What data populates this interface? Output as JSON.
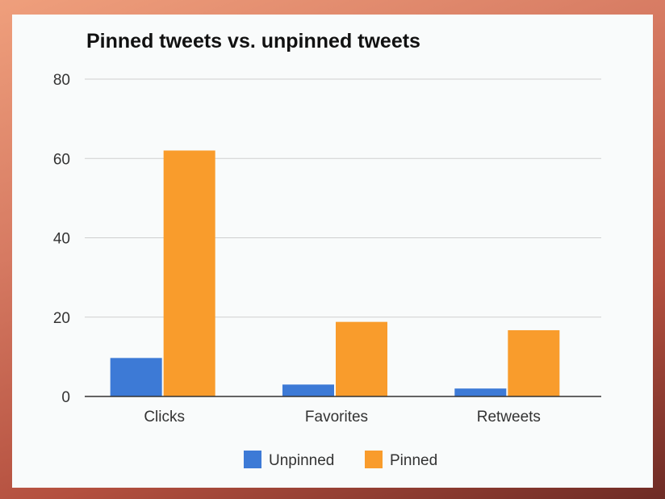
{
  "chart_data": {
    "type": "bar",
    "title": "Pinned tweets vs. unpinned tweets",
    "categories": [
      "Clicks",
      "Favorites",
      "Retweets"
    ],
    "series": [
      {
        "name": "Unpinned",
        "values": [
          9.7,
          3,
          2
        ],
        "color": "#3d7ad6"
      },
      {
        "name": "Pinned",
        "values": [
          62,
          18.8,
          16.7
        ],
        "color": "#f99c2c"
      }
    ],
    "ylim": [
      0,
      80
    ],
    "yticks": [
      0,
      20,
      40,
      60,
      80
    ],
    "grid": true,
    "legend_position": "bottom"
  }
}
